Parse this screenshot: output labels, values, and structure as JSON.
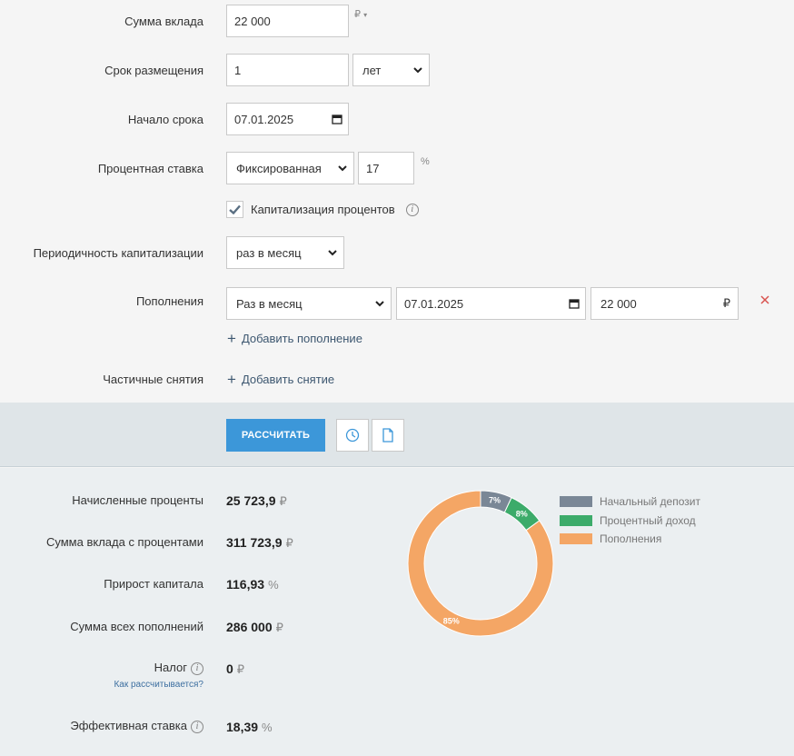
{
  "form": {
    "deposit_amount": {
      "label": "Сумма вклада",
      "value": "22 000",
      "currency": "₽"
    },
    "term": {
      "label": "Срок размещения",
      "value": "1",
      "unit": "лет"
    },
    "start_date": {
      "label": "Начало срока",
      "value": "07.01.2025"
    },
    "rate": {
      "label": "Процентная ставка",
      "type": "Фиксированная",
      "value": "17",
      "unit": "%"
    },
    "capitalization": {
      "label": "Капитализация процентов",
      "checked": true
    },
    "cap_period": {
      "label": "Периодичность капитализации",
      "value": "раз в месяц"
    },
    "top_ups": {
      "label": "Пополнения",
      "period": "Раз в месяц",
      "date": "07.01.2025",
      "amount": "22 000",
      "currency": "₽",
      "add_label": "Добавить пополнение"
    },
    "withdrawals": {
      "label": "Частичные снятия",
      "add_label": "Добавить снятие"
    }
  },
  "actions": {
    "calculate_label": "РАССЧИТАТЬ"
  },
  "results": {
    "accrued_interest": {
      "label": "Начисленные проценты",
      "value": "25 723,9",
      "unit": "₽"
    },
    "total_with_interest": {
      "label": "Сумма вклада с процентами",
      "value": "311 723,9",
      "unit": "₽"
    },
    "capital_growth": {
      "label": "Прирост капитала",
      "value": "116,93",
      "unit": "%"
    },
    "total_top_ups": {
      "label": "Сумма всех пополнений",
      "value": "286 000",
      "unit": "₽"
    },
    "tax": {
      "label": "Налог",
      "value": "0",
      "unit": "₽",
      "link": "Как рассчитывается?"
    },
    "effective_rate": {
      "label": "Эффективная ставка",
      "value": "18,39",
      "unit": "%"
    }
  },
  "chart_data": {
    "type": "pie",
    "donut": true,
    "categories": [
      "Начальный депозит",
      "Процентный доход",
      "Пополнения"
    ],
    "values": [
      7,
      8,
      85
    ],
    "value_labels": [
      "7%",
      "8%",
      "85%"
    ],
    "colors": [
      "#7a8796",
      "#3cab6a",
      "#f4a665"
    ],
    "legend_position": "right"
  }
}
